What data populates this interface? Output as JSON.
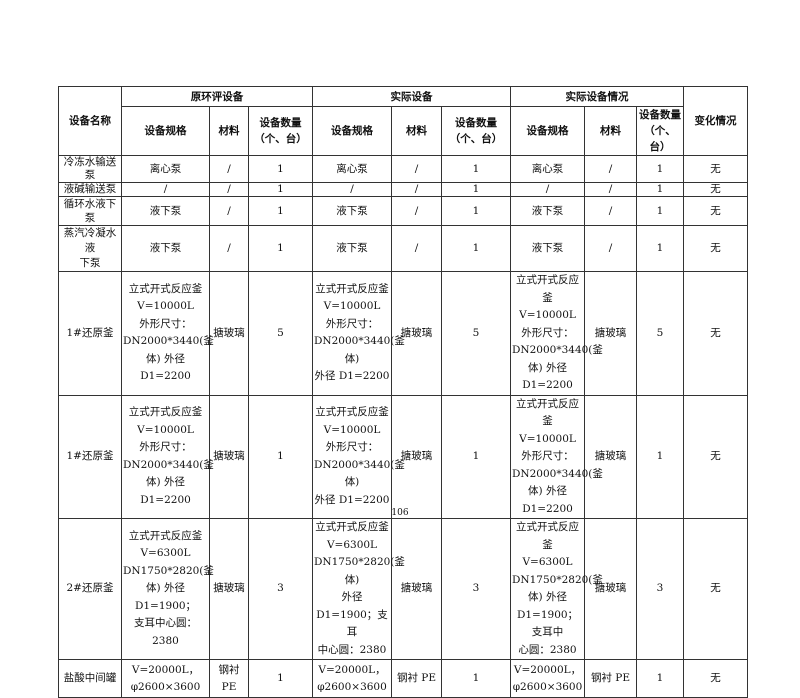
{
  "table": {
    "header": {
      "name": "设备名称",
      "group_original": "原环评设备",
      "group_actual": "实际设备",
      "group_actual_status": "实际设备情况",
      "change": "变化情况",
      "spec": "设备规格",
      "material": "材料",
      "qty": "设备数量\n（个、台）"
    },
    "rows": [
      {
        "cells": [
          "冷冻水输送泵",
          "离心泵",
          "/",
          "1",
          "离心泵",
          "/",
          "1",
          "离心泵",
          "/",
          "1",
          "无"
        ]
      },
      {
        "cells": [
          "液碱输送泵",
          "/",
          "/",
          "1",
          "/",
          "/",
          "1",
          "/",
          "/",
          "1",
          "无"
        ]
      },
      {
        "cells": [
          "循环水液下泵",
          "液下泵",
          "/",
          "1",
          "液下泵",
          "/",
          "1",
          "液下泵",
          "/",
          "1",
          "无"
        ]
      },
      {
        "cells": [
          "蒸汽冷凝水液\n下泵",
          "液下泵",
          "/",
          "1",
          "液下泵",
          "/",
          "1",
          "液下泵",
          "/",
          "1",
          "无"
        ]
      },
      {
        "cells": [
          "1#还原釜",
          "立式开式反应釜\nV=10000L\n外形尺寸：\nDN2000*3440(釜\n体) 外径 D1=2200",
          "搪玻璃",
          "5",
          "立式开式反应釜\nV=10000L\n外形尺寸：\nDN2000*3440(釜体)\n外径 D1=2200",
          "搪玻璃",
          "5",
          "立式开式反应釜\nV=10000L\n外形尺寸：\nDN2000*3440(釜\n体) 外径 D1=2200",
          "搪玻璃",
          "5",
          "无"
        ]
      },
      {
        "cells": [
          "1#还原釜",
          "立式开式反应釜\nV=10000L\n外形尺寸：\nDN2000*3440(釜\n体) 外径 D1=2200",
          "搪玻璃",
          "1",
          "立式开式反应釜\nV=10000L\n外形尺寸：\nDN2000*3440(釜体)\n外径 D1=2200",
          "搪玻璃",
          "1",
          "立式开式反应釜\nV=10000L\n外形尺寸：\nDN2000*3440(釜\n体) 外径 D1=2200",
          "搪玻璃",
          "1",
          "无"
        ]
      },
      {
        "cells": [
          "2#还原釜",
          "立式开式反应釜\nV=6300L\nDN1750*2820(釜\n体) 外径 D1=1900；\n支耳中心圆：2380",
          "搪玻璃",
          "3",
          "立式开式反应釜\nV=6300L\nDN1750*2820(釜体)\n外径 D1=1900；支耳\n中心圆：2380",
          "搪玻璃",
          "3",
          "立式开式反应釜\nV=6300L\nDN1750*2820(釜\n体) 外径\nD1=1900；支耳中\n心圆：2380",
          "搪玻璃",
          "3",
          "无"
        ]
      },
      {
        "cells": [
          "盐酸中间罐",
          "V=20000L，\nφ2600×3600",
          "钢衬 PE",
          "1",
          "V=20000L，\nφ2600×3600",
          "钢衬 PE",
          "1",
          "V=20000L，\nφ2600×3600",
          "钢衬 PE",
          "1",
          "无"
        ]
      }
    ]
  },
  "page_number": "106"
}
